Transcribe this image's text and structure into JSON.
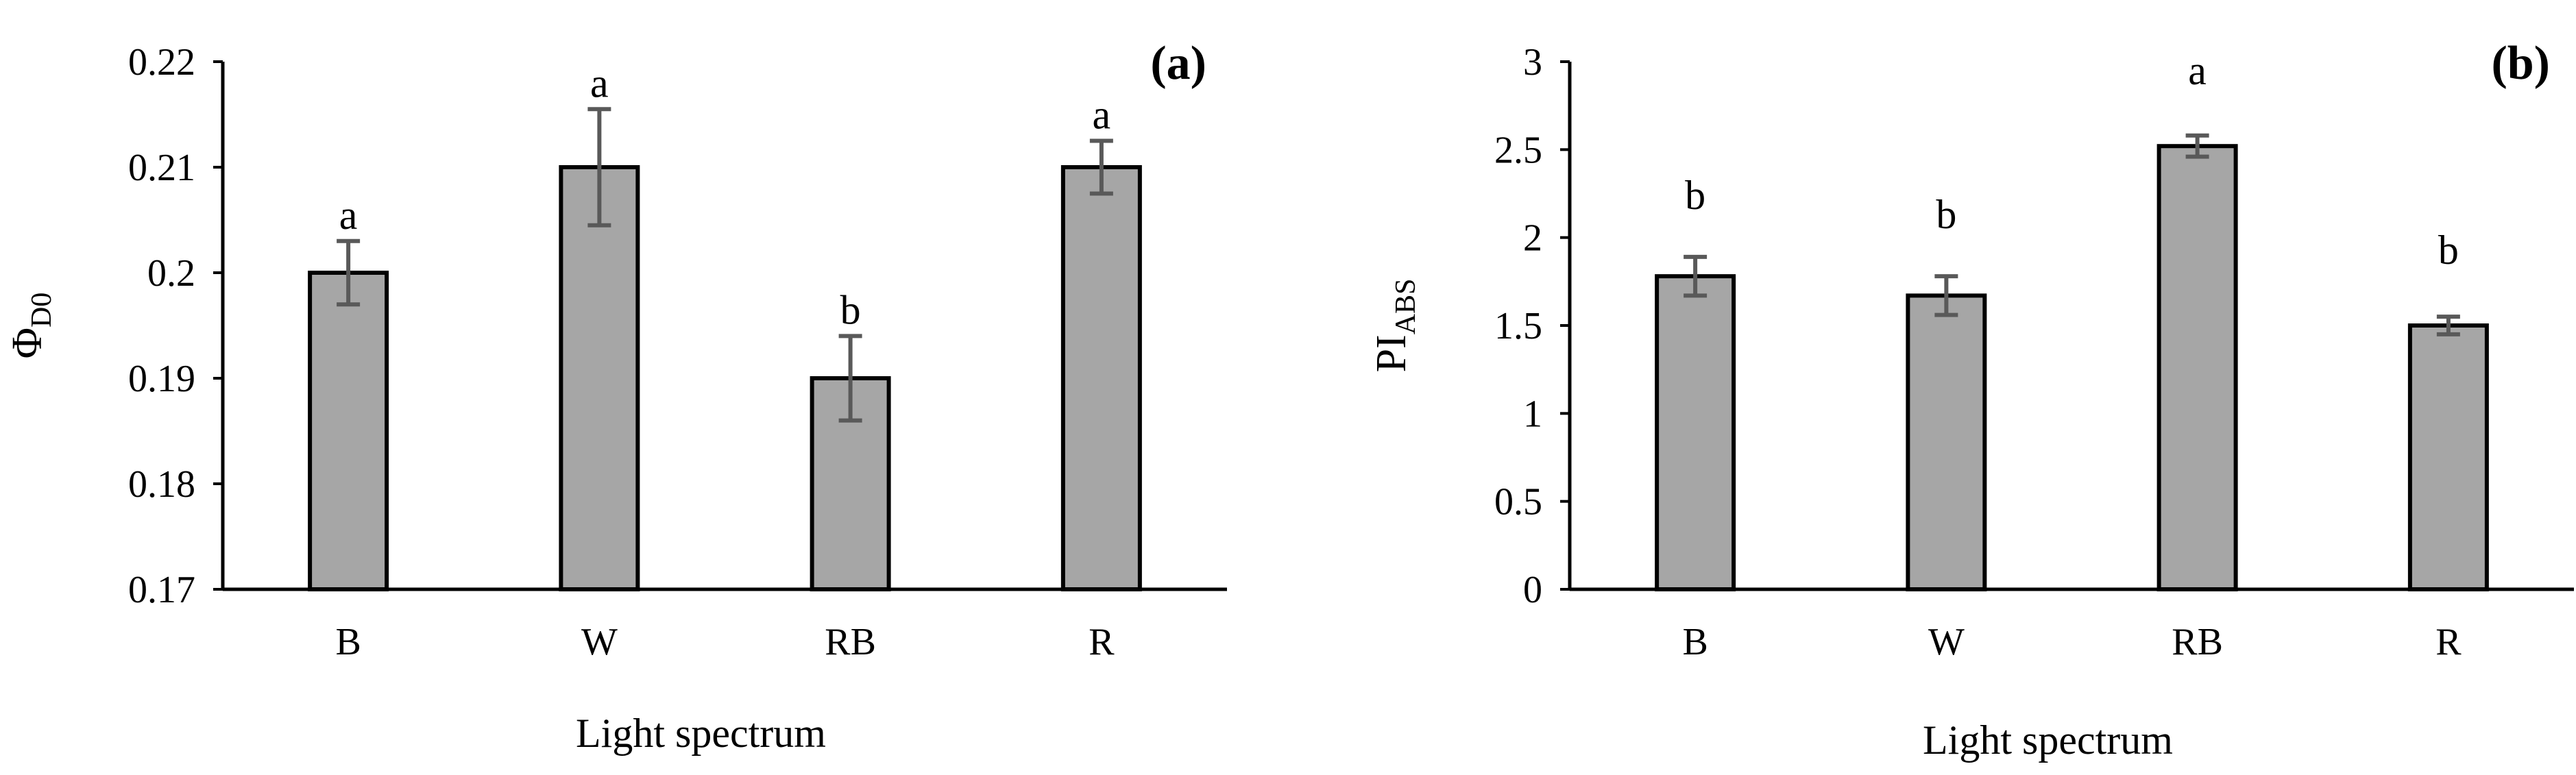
{
  "chart_data": [
    {
      "type": "bar",
      "panel_label": "(a)",
      "categories": [
        "B",
        "W",
        "RB",
        "R"
      ],
      "values": [
        0.2,
        0.21,
        0.19,
        0.21
      ],
      "errors": [
        0.003,
        0.0055,
        0.004,
        0.0025
      ],
      "significance": [
        "a",
        "a",
        "b",
        "a"
      ],
      "xlabel": "Light spectrum",
      "ylabel_main": "Φ",
      "ylabel_sub": "D0",
      "ylim": [
        0.17,
        0.22
      ],
      "yticks": [
        0.17,
        0.18,
        0.19,
        0.2,
        0.21,
        0.22
      ],
      "ytick_labels": [
        "0.17",
        "0.18",
        "0.19",
        "0.2",
        "0.21",
        "0.22"
      ],
      "bar_color": "#a6a6a6",
      "grid": false
    },
    {
      "type": "bar",
      "panel_label": "(b)",
      "categories": [
        "B",
        "W",
        "RB",
        "R"
      ],
      "values": [
        1.78,
        1.67,
        2.52,
        1.5
      ],
      "errors": [
        0.11,
        0.11,
        0.06,
        0.05
      ],
      "significance": [
        "b",
        "b",
        "a",
        "b"
      ],
      "xlabel": "Light spectrum",
      "ylabel_main": "PI",
      "ylabel_sub": "ABS",
      "ylim": [
        0,
        3
      ],
      "yticks": [
        0,
        0.5,
        1,
        1.5,
        2,
        2.5,
        3
      ],
      "ytick_labels": [
        "0",
        "0.5",
        "1",
        "1.5",
        "2",
        "2.5",
        "3"
      ],
      "bar_color": "#a6a6a6",
      "grid": false
    }
  ]
}
